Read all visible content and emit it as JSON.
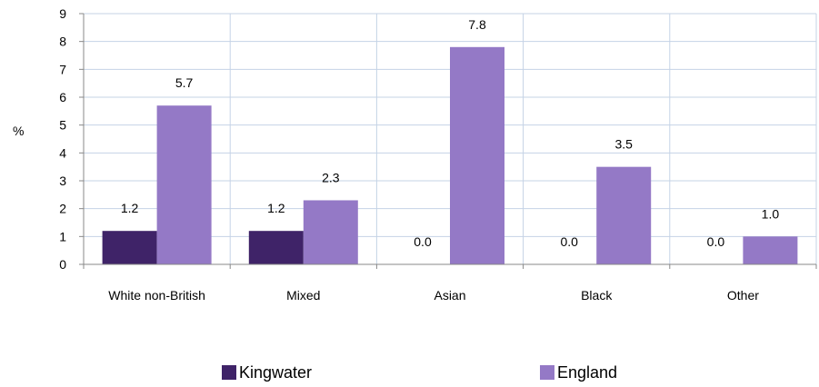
{
  "chart_data": {
    "type": "bar",
    "ylabel": "%",
    "ylim": [
      0,
      9
    ],
    "yticks": [
      0,
      1,
      2,
      3,
      4,
      5,
      6,
      7,
      8,
      9
    ],
    "grid": true,
    "legend_position": "bottom",
    "categories": [
      "White non-British",
      "Mixed",
      "Asian",
      "Black",
      "Other"
    ],
    "series": [
      {
        "name": "Kingwater",
        "color": "#3f2368",
        "values": [
          1.2,
          1.2,
          0.0,
          0.0,
          0.0
        ],
        "labels": [
          "1.2",
          "1.2",
          "0.0",
          "0.0",
          "0.0"
        ]
      },
      {
        "name": "England",
        "color": "#9479c6",
        "values": [
          5.7,
          2.3,
          7.8,
          3.5,
          1.0
        ],
        "labels": [
          "5.7",
          "2.3",
          "7.8",
          "3.5",
          "1.0"
        ]
      }
    ]
  }
}
